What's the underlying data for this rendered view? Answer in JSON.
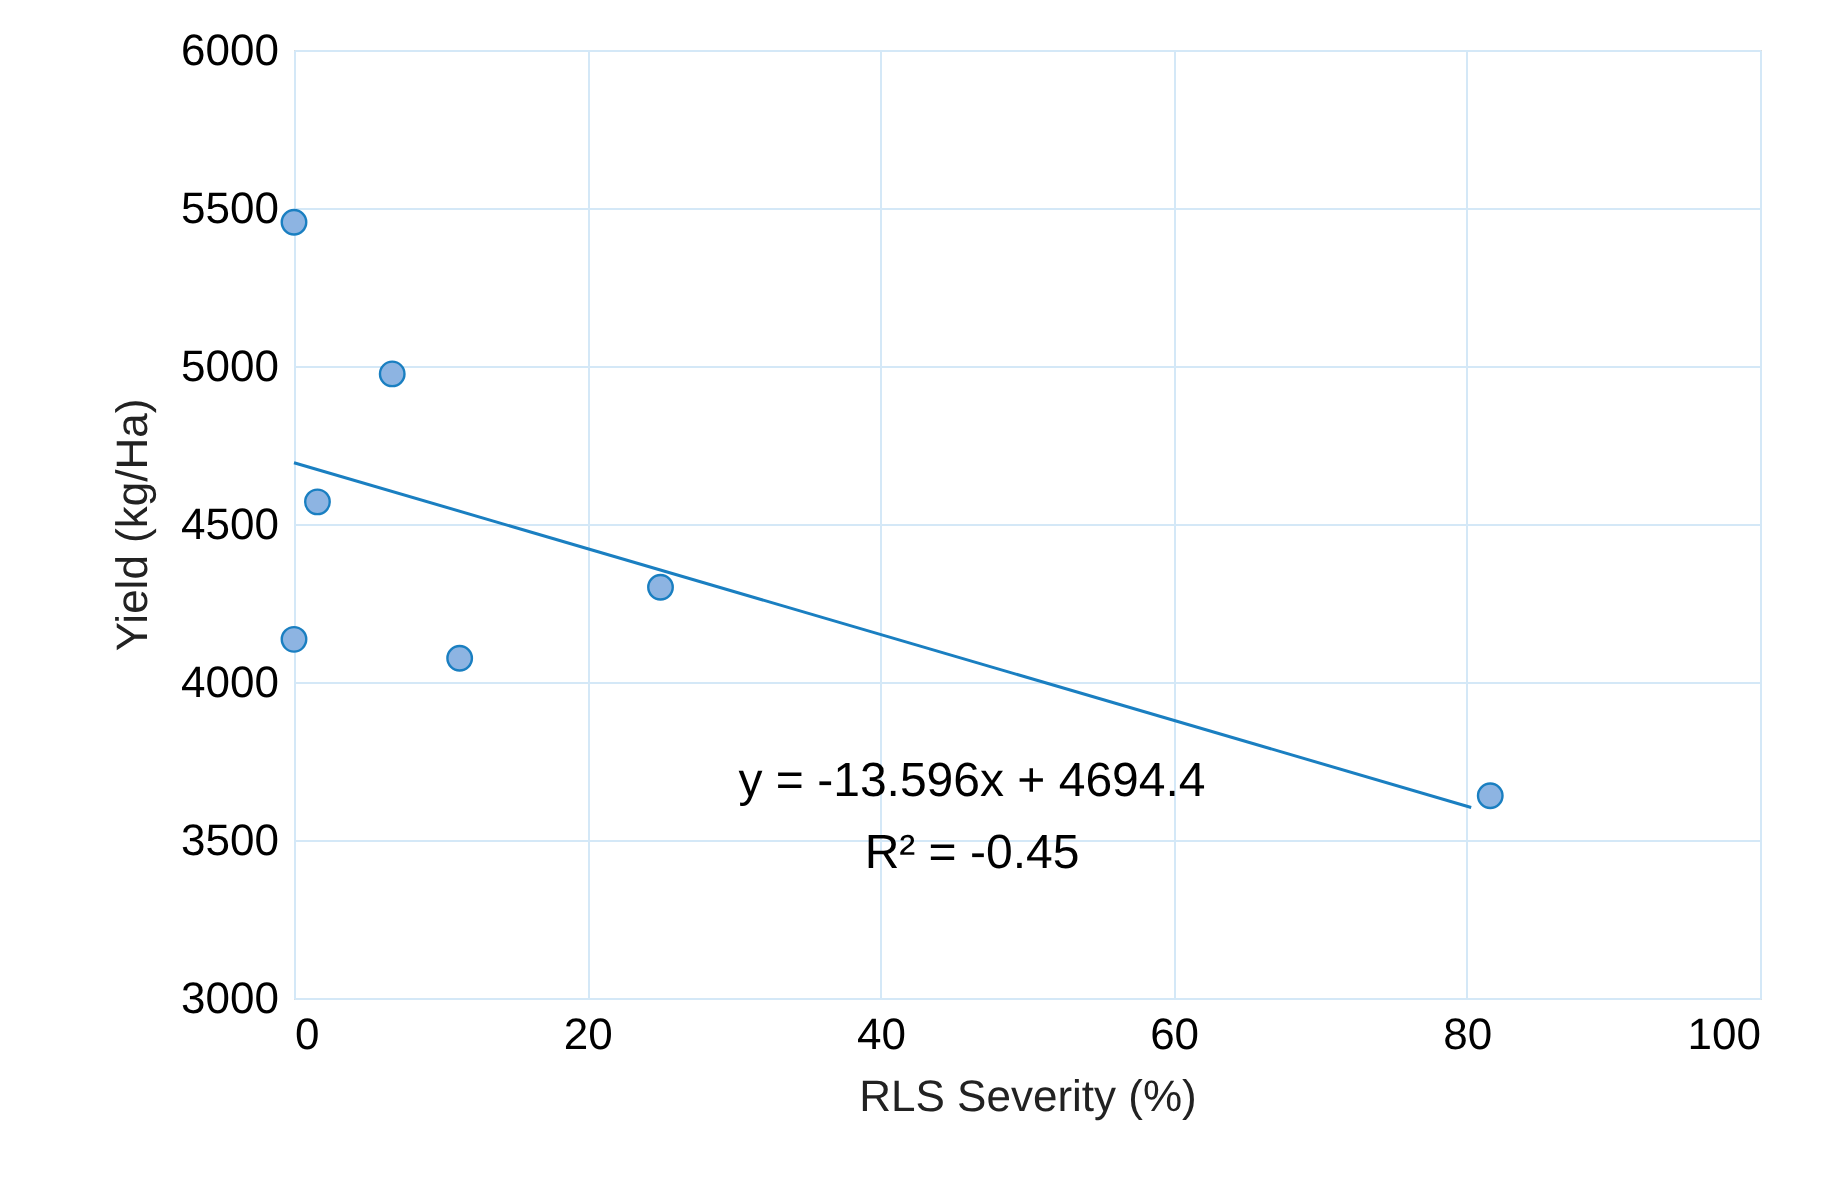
{
  "chart_data": {
    "type": "scatter",
    "xlabel": "RLS Severity  (%)",
    "ylabel": "Yield (kg/Ha)",
    "series": [
      {
        "x": [
          0,
          6.7,
          1.6,
          0,
          11.3,
          25,
          81.6
        ],
        "values": [
          5455,
          4975,
          4570,
          4135,
          4075,
          4300,
          3640
        ],
        "color": "#8db4e2",
        "marker": "circle"
      },
      {
        "type": "line",
        "x": [
          0,
          80.3
        ],
        "values": [
          4694,
          3603
        ],
        "color": "#1a7fc1",
        "marker": "none",
        "line_style": "solid"
      }
    ],
    "xlim": [
      0,
      100
    ],
    "xticks": [
      0,
      20,
      40,
      60,
      80,
      100
    ],
    "ylim": [
      3000,
      6000
    ],
    "yticks": [
      3000,
      3500,
      4000,
      4500,
      5000,
      5500,
      6000
    ],
    "grid": true,
    "annotations": [
      "y = -13.596x + 4694.4",
      "R² = -0.45"
    ]
  }
}
